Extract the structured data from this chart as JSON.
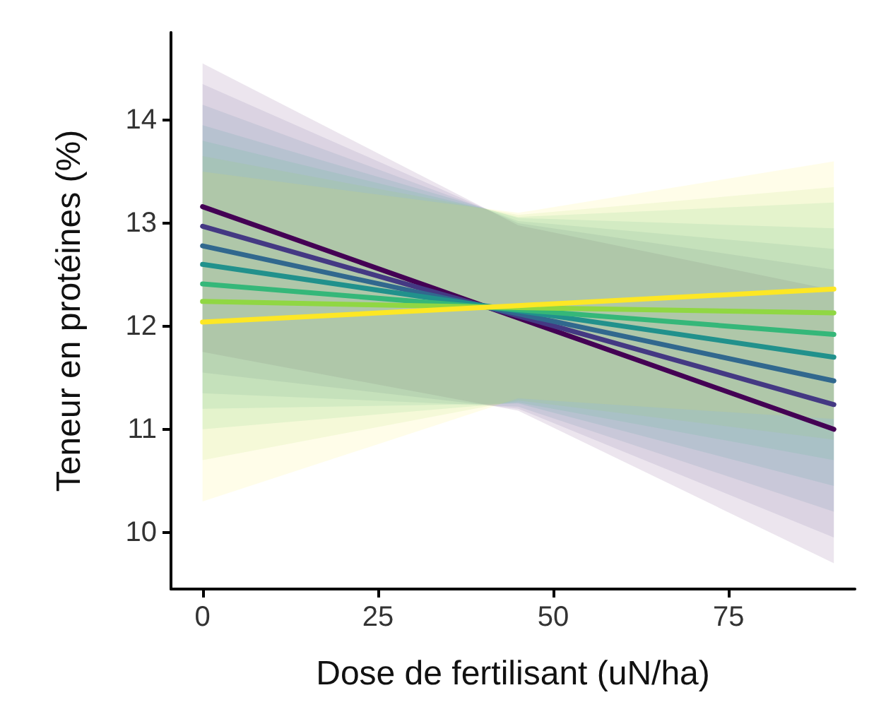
{
  "chart_data": {
    "type": "line",
    "xlabel": "Dose de fertilisant (uN/ha)",
    "ylabel": "Teneur en protéines (%)",
    "x": [
      0,
      45,
      90
    ],
    "series": [
      {
        "color": "#440154",
        "values": [
          13.16,
          12.08,
          11.0
        ],
        "upper": [
          14.55,
          12.98,
          12.35
        ],
        "lower": [
          11.75,
          11.18,
          9.7
        ]
      },
      {
        "color": "#443983",
        "values": [
          12.97,
          12.1,
          11.24
        ],
        "upper": [
          14.35,
          13.0,
          12.55
        ],
        "lower": [
          11.55,
          11.2,
          9.95
        ]
      },
      {
        "color": "#31688e",
        "values": [
          12.78,
          12.12,
          11.47
        ],
        "upper": [
          14.15,
          13.02,
          12.75
        ],
        "lower": [
          11.35,
          11.22,
          10.2
        ]
      },
      {
        "color": "#21918c",
        "values": [
          12.6,
          12.15,
          11.7
        ],
        "upper": [
          13.95,
          13.05,
          12.95
        ],
        "lower": [
          11.2,
          11.25,
          10.45
        ]
      },
      {
        "color": "#35b779",
        "values": [
          12.41,
          12.16,
          11.92
        ],
        "upper": [
          13.8,
          13.06,
          13.2
        ],
        "lower": [
          11.0,
          11.26,
          10.7
        ]
      },
      {
        "color": "#90d743",
        "values": [
          12.24,
          12.18,
          12.13
        ],
        "upper": [
          13.65,
          13.08,
          13.35
        ],
        "lower": [
          10.7,
          11.28,
          10.9
        ]
      },
      {
        "color": "#fde725",
        "values": [
          12.04,
          12.2,
          12.36
        ],
        "upper": [
          13.5,
          13.1,
          13.6
        ],
        "lower": [
          10.3,
          11.3,
          11.1
        ]
      }
    ],
    "xlim": [
      -4.5,
      93
    ],
    "xticks": [
      0,
      25,
      50,
      75
    ],
    "ylim": [
      9.45,
      14.85
    ],
    "yticks": [
      10,
      11,
      12,
      13,
      14
    ],
    "grid": false,
    "marker": "none",
    "line_style": "solid"
  }
}
